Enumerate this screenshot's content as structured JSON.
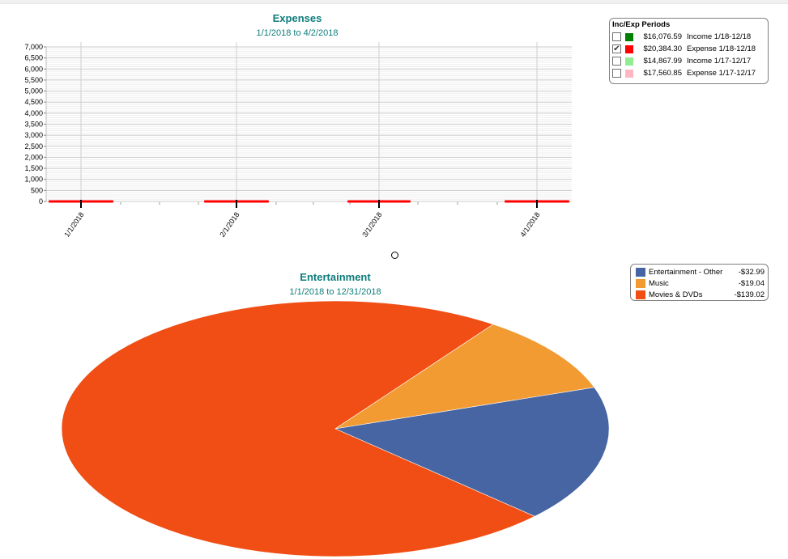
{
  "chart_data": [
    {
      "type": "bar",
      "title": "Expenses",
      "subtitle": "1/1/2018 to 4/2/2018",
      "categories": [
        "1/1/2018",
        "2/1/2018",
        "3/1/2018",
        "4/1/2018"
      ],
      "values": [
        0,
        0,
        0,
        0
      ],
      "ylim": [
        0,
        7000
      ],
      "yticks": [
        0,
        500,
        1000,
        1500,
        2000,
        2500,
        3000,
        3500,
        4000,
        4500,
        5000,
        5500,
        6000,
        6500,
        7000
      ],
      "ytick_labels": [
        "0",
        "500",
        "1,000",
        "1,500",
        "2,000",
        "2,500",
        "3,000",
        "3,500",
        "4,000",
        "4,500",
        "5,000",
        "5,500",
        "6,000",
        "6,500",
        "7,000"
      ],
      "grid": true,
      "legend_position": "top-right",
      "legend": {
        "title": "Inc/Exp Periods",
        "entries": [
          {
            "checked": false,
            "color": "#008000",
            "amount": "$16,076.59",
            "label": "Income 1/18-12/18"
          },
          {
            "checked": true,
            "color": "#ff0000",
            "amount": "$20,384.30",
            "label": "Expense 1/18-12/18"
          },
          {
            "checked": false,
            "color": "#90ee90",
            "amount": "$14,867.99",
            "label": "Income 1/17-12/17"
          },
          {
            "checked": false,
            "color": "#ffb6c1",
            "amount": "$17,560.85",
            "label": "Expense 1/17-12/17"
          }
        ]
      },
      "series_color": "#ff0000"
    },
    {
      "type": "pie",
      "title": "Entertainment",
      "subtitle": "1/1/2018 to 12/31/2018",
      "legend_position": "top-right",
      "slices": [
        {
          "name": "Entertainment - Other",
          "value": 32.99,
          "label": "-$32.99",
          "color": "#4665a2"
        },
        {
          "name": "Music",
          "value": 19.04,
          "label": "-$19.04",
          "color": "#f29b33"
        },
        {
          "name": "Movies & DVDs",
          "value": 139.02,
          "label": "-$139.02",
          "color": "#f04e15"
        }
      ]
    }
  ]
}
